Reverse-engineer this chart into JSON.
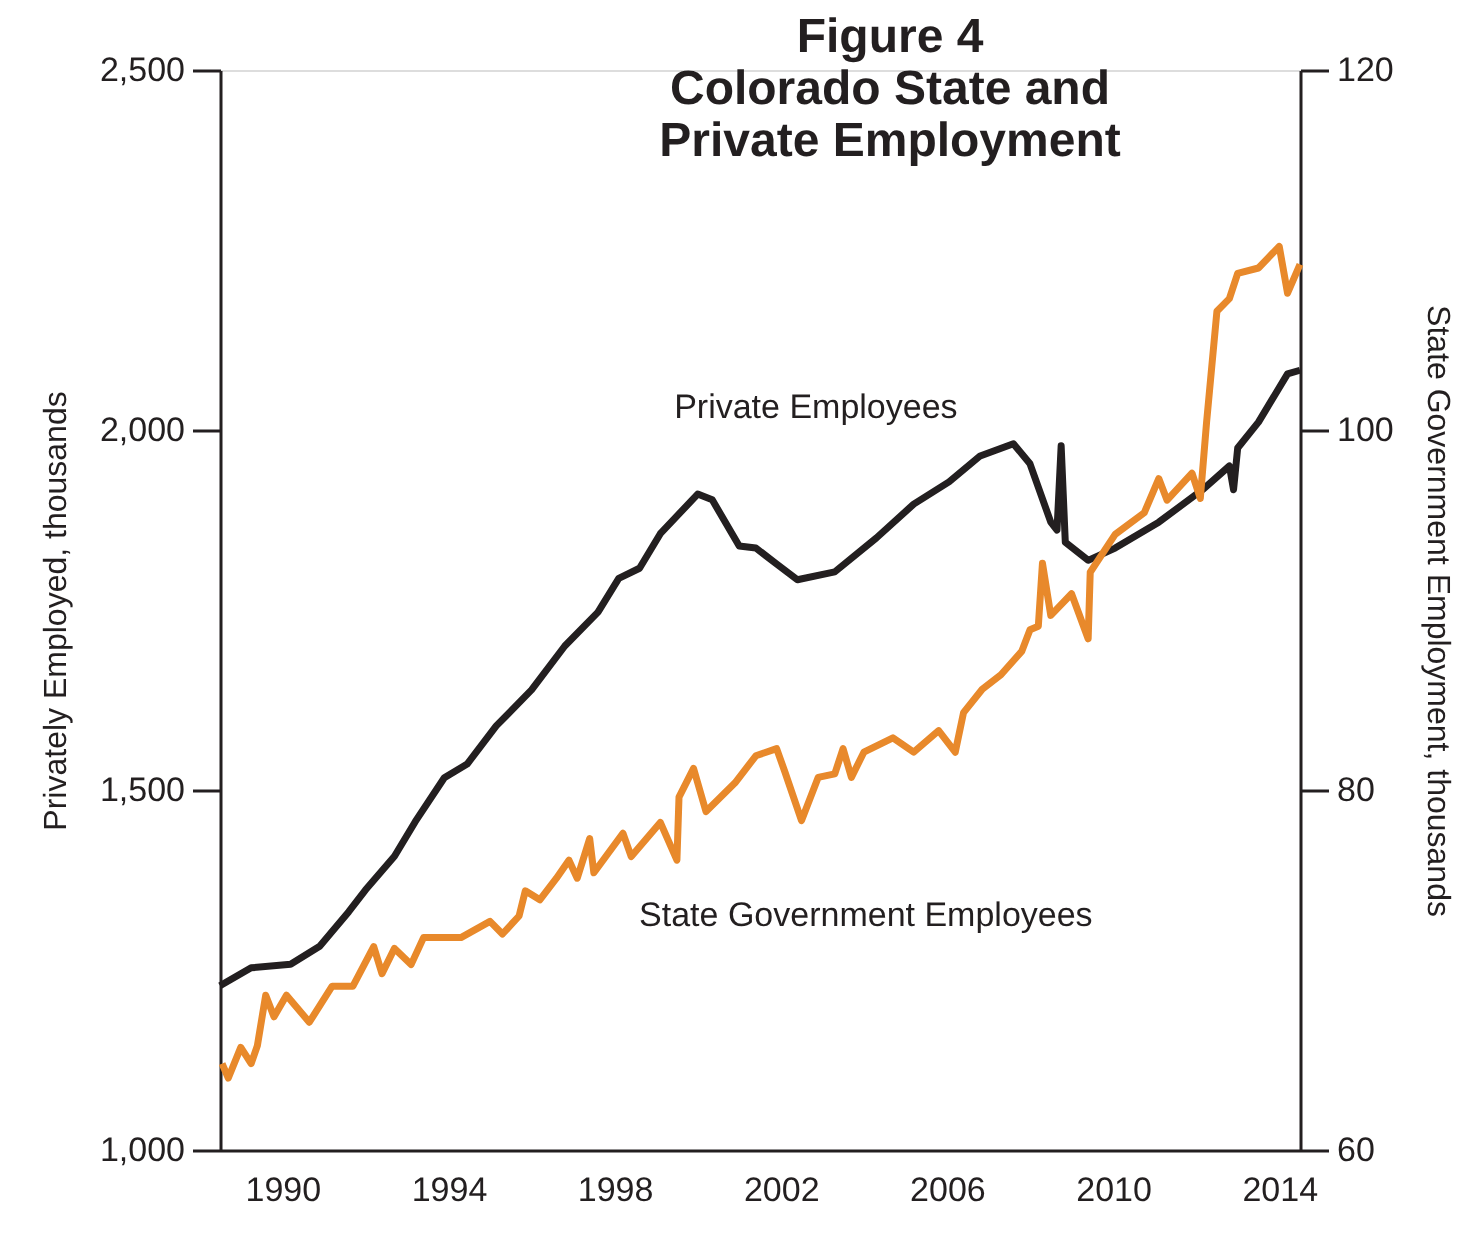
{
  "chart_data": {
    "type": "line",
    "title": "Figure 4\nColorado State and\nPrivate Employment",
    "ylabel": "Privately Employed, thousands",
    "y2label": "State Government Employment, thousands",
    "xlim": [
      1988.5,
      2014.5
    ],
    "xticks": [
      1990,
      1994,
      1998,
      2002,
      2006,
      2010,
      2014
    ],
    "ylim": [
      1000,
      2500
    ],
    "yticks": [
      {
        "value": 1000,
        "label": "1,000"
      },
      {
        "value": 1500,
        "label": "1,500"
      },
      {
        "value": 2000,
        "label": "2,000"
      },
      {
        "value": 2500,
        "label": "2,500"
      }
    ],
    "y2lim": [
      60,
      120
    ],
    "y2ticks": [
      60,
      80,
      100,
      120
    ],
    "grid": false,
    "legend": false,
    "marker": "none",
    "line_style": "solid",
    "series": [
      {
        "name": "Private Employees",
        "color": "#231f20",
        "x": [
          1988.5,
          1989.25,
          1990.2,
          1990.9,
          1991.6,
          1992.0,
          1992.7,
          1993.2,
          1993.9,
          1994.45,
          1995.15,
          1996.0,
          1996.8,
          1997.6,
          1998.1,
          1998.6,
          1999.1,
          2000.0,
          2000.35,
          2001.0,
          2001.4,
          2001.9,
          2002.4,
          2003.3,
          2004.3,
          2005.2,
          2006.05,
          2006.8,
          2007.6,
          2008.0,
          2008.5,
          2008.65,
          2008.75,
          2008.85,
          2009.4,
          2010.05,
          2011.1,
          2012.15,
          2012.8,
          2012.9,
          2013.0,
          2013.5,
          2014.2,
          2014.5
        ],
        "values": [
          1228,
          1253,
          1258,
          1283,
          1331,
          1361,
          1408,
          1456,
          1517,
          1536,
          1589,
          1639,
          1700,
          1747,
          1794,
          1808,
          1856,
          1911,
          1903,
          1839,
          1836,
          1814,
          1792,
          1803,
          1850,
          1897,
          1928,
          1964,
          1981,
          1953,
          1872,
          1861,
          1978,
          1844,
          1819,
          1836,
          1872,
          1917,
          1950,
          1917,
          1975,
          2011,
          2078,
          2083
        ]
      },
      {
        "name": "State Government Employees",
        "color": "#e8892b",
        "axis": "y2",
        "x": [
          1988.55,
          1988.7,
          1989.0,
          1989.25,
          1989.4,
          1989.6,
          1989.8,
          1990.1,
          1990.65,
          1991.2,
          1991.7,
          1992.2,
          1992.4,
          1992.7,
          1993.1,
          1993.4,
          1994.3,
          1995.0,
          1995.3,
          1995.7,
          1995.85,
          1996.2,
          1996.6,
          1996.9,
          1997.1,
          1997.4,
          1997.5,
          1998.2,
          1998.4,
          1999.1,
          1999.5,
          1999.55,
          1999.9,
          2000.2,
          2000.9,
          2001.4,
          2001.9,
          2002.1,
          2002.5,
          2002.9,
          2003.3,
          2003.5,
          2003.7,
          2004.0,
          2004.7,
          2005.2,
          2005.8,
          2006.2,
          2006.4,
          2006.85,
          2007.3,
          2007.8,
          2008.0,
          2008.2,
          2008.3,
          2008.5,
          2009.0,
          2009.4,
          2009.45,
          2010.05,
          2010.75,
          2011.1,
          2011.3,
          2011.9,
          2012.1,
          2012.25,
          2012.5,
          2012.8,
          2013.0,
          2013.5,
          2014.0,
          2014.2,
          2014.5
        ],
        "values": [
          64.8,
          64.0,
          65.7,
          64.8,
          65.8,
          68.6,
          67.4,
          68.6,
          67.1,
          69.1,
          69.1,
          71.3,
          69.8,
          71.2,
          70.3,
          71.8,
          71.8,
          72.7,
          72.0,
          73.0,
          74.4,
          73.9,
          75.1,
          76.1,
          75.1,
          77.3,
          75.4,
          77.6,
          76.3,
          78.2,
          76.1,
          79.6,
          81.2,
          78.8,
          80.4,
          81.9,
          82.3,
          81.0,
          78.3,
          80.7,
          80.9,
          82.3,
          80.7,
          82.1,
          82.9,
          82.1,
          83.3,
          82.1,
          84.3,
          85.6,
          86.4,
          87.7,
          88.9,
          89.1,
          92.6,
          89.7,
          90.9,
          88.4,
          92.1,
          94.2,
          95.4,
          97.3,
          96.1,
          97.6,
          96.2,
          100.4,
          106.6,
          107.3,
          108.7,
          109.0,
          110.2,
          107.6,
          109.2
        ]
      }
    ]
  }
}
